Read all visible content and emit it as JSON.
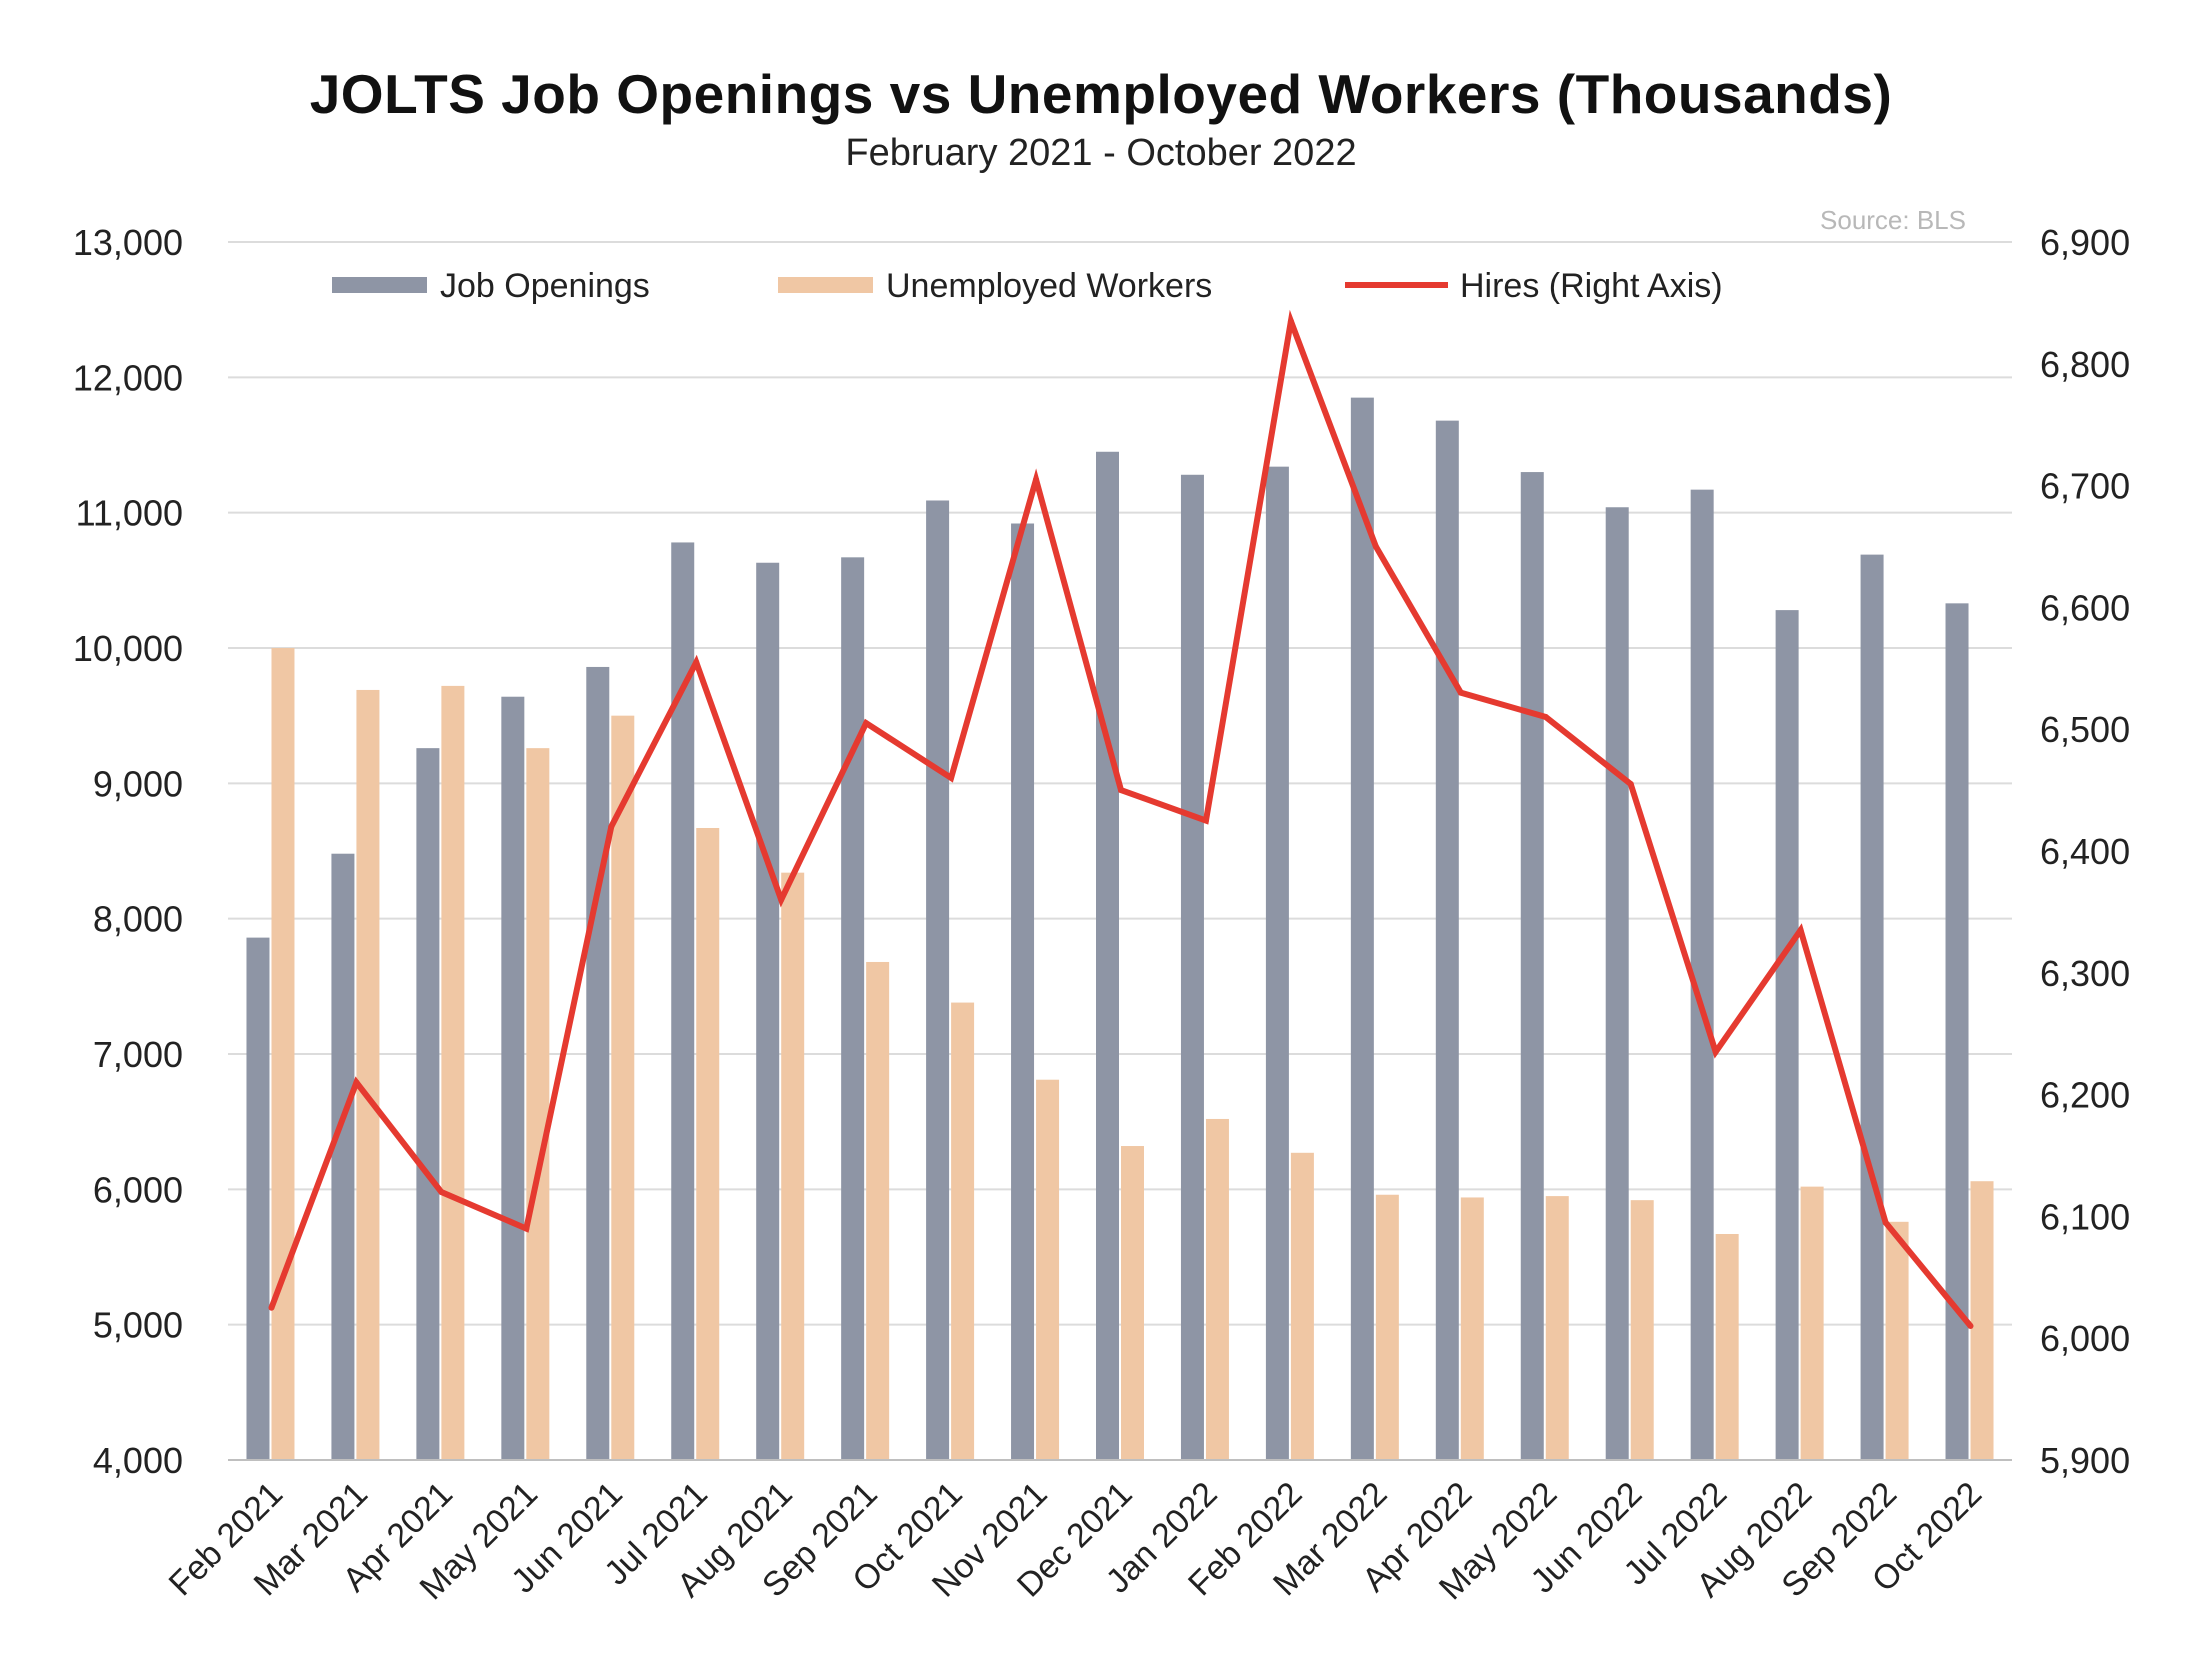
{
  "chart_data": {
    "type": "bar",
    "title": "JOLTS Job Openings vs Unemployed Workers (Thousands)",
    "subtitle": "February 2021 - October 2022",
    "source": "Source: BLS",
    "categories": [
      "Feb 2021",
      "Mar 2021",
      "Apr 2021",
      "May 2021",
      "Jun 2021",
      "Jul 2021",
      "Aug 2021",
      "Sep 2021",
      "Oct 2021",
      "Nov 2021",
      "Dec 2021",
      "Jan 2022",
      "Feb 2022",
      "Mar 2022",
      "Apr 2022",
      "May 2022",
      "Jun 2022",
      "Jul 2022",
      "Aug 2022",
      "Sep 2022",
      "Oct 2022"
    ],
    "series": [
      {
        "name": "Job Openings",
        "type": "bar",
        "axis": "left",
        "color": "#8e95a5",
        "values": [
          7860,
          8480,
          9260,
          9640,
          9860,
          10780,
          10630,
          10670,
          11090,
          10920,
          11450,
          11280,
          11340,
          11850,
          11680,
          11300,
          11040,
          11170,
          10280,
          10690,
          10330
        ]
      },
      {
        "name": "Unemployed Workers",
        "type": "bar",
        "axis": "left",
        "color": "#f0c7a4",
        "values": [
          10000,
          9690,
          9720,
          9260,
          9500,
          8670,
          8340,
          7680,
          7380,
          6810,
          6320,
          6520,
          6270,
          5960,
          5940,
          5950,
          5920,
          5670,
          6020,
          5760,
          6060
        ]
      },
      {
        "name": "Hires (Right Axis)",
        "type": "line",
        "axis": "right",
        "color": "#e53a30",
        "values": [
          6025,
          6210,
          6120,
          6090,
          6420,
          6555,
          6360,
          6505,
          6460,
          6705,
          6450,
          6425,
          6835,
          6650,
          6530,
          6510,
          6455,
          6235,
          6335,
          6095,
          6010
        ]
      }
    ],
    "y_left": {
      "min": 4000,
      "max": 13000,
      "step": 1000,
      "ticks": [
        "4,000",
        "5,000",
        "6,000",
        "7,000",
        "8,000",
        "9,000",
        "10,000",
        "11,000",
        "12,000",
        "13,000"
      ]
    },
    "y_right": {
      "min": 5900,
      "max": 6900,
      "step": 100,
      "ticks": [
        "5,900",
        "6,000",
        "6,100",
        "6,200",
        "6,300",
        "6,400",
        "6,500",
        "6,600",
        "6,700",
        "6,800",
        "6,900"
      ]
    },
    "grid": true,
    "legend_position": "top"
  }
}
